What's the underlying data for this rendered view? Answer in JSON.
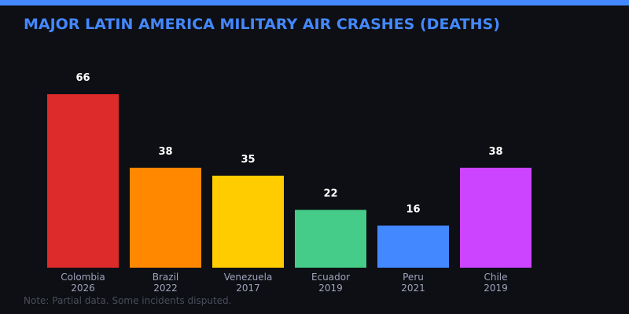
{
  "title": "MAJOR LATIN AMERICA MILITARY AIR CRASHES (DEATHS)",
  "note": "Note: Partial data. Some incidents disputed.",
  "colors": {
    "accent": "#4488ff",
    "background": "#0d0f14"
  },
  "chart_data": {
    "type": "bar",
    "title": "MAJOR LATIN AMERICA MILITARY AIR CRASHES (DEATHS)",
    "categories": [
      [
        "Colombia",
        "2026"
      ],
      [
        "Brazil",
        "2022"
      ],
      [
        "Venezuela",
        "2017"
      ],
      [
        "Ecuador",
        "2019"
      ],
      [
        "Peru",
        "2021"
      ],
      [
        "Chile",
        "2019"
      ]
    ],
    "values": [
      66,
      38,
      35,
      22,
      16,
      38
    ],
    "bar_colors": [
      "#dd2a2a",
      "#ff8800",
      "#ffcc00",
      "#44cc88",
      "#4488ff",
      "#cc44ff"
    ],
    "ylim": [
      0,
      66
    ],
    "grid": false,
    "data_labels": true
  }
}
